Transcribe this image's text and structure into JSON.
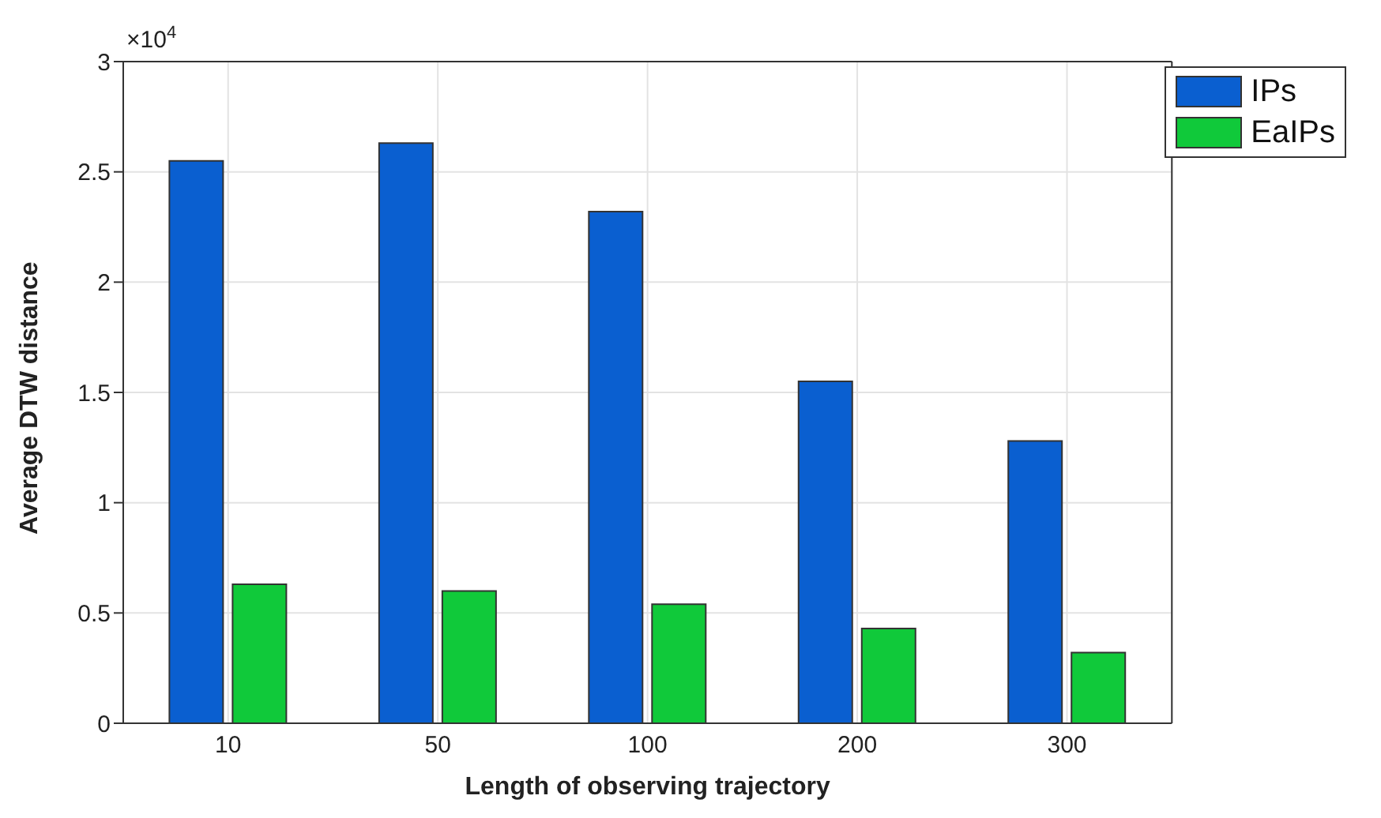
{
  "chart_data": {
    "type": "bar",
    "xlabel": "Length of observing trajectory",
    "ylabel": "Average DTW distance",
    "categories": [
      "10",
      "50",
      "100",
      "200",
      "300"
    ],
    "series": [
      {
        "name": "IPs",
        "color": "#0a5fd0",
        "values": [
          2.55,
          2.63,
          2.32,
          1.55,
          1.28
        ]
      },
      {
        "name": "EaIPs",
        "color": "#10c93a",
        "values": [
          0.63,
          0.6,
          0.54,
          0.43,
          0.32
        ]
      }
    ],
    "ylim": [
      0,
      3
    ],
    "yticks": [
      0,
      0.5,
      1,
      1.5,
      2,
      2.5,
      3
    ],
    "annotations": [
      "×10$^{4}$"
    ],
    "grid": true,
    "legend": "top right"
  }
}
